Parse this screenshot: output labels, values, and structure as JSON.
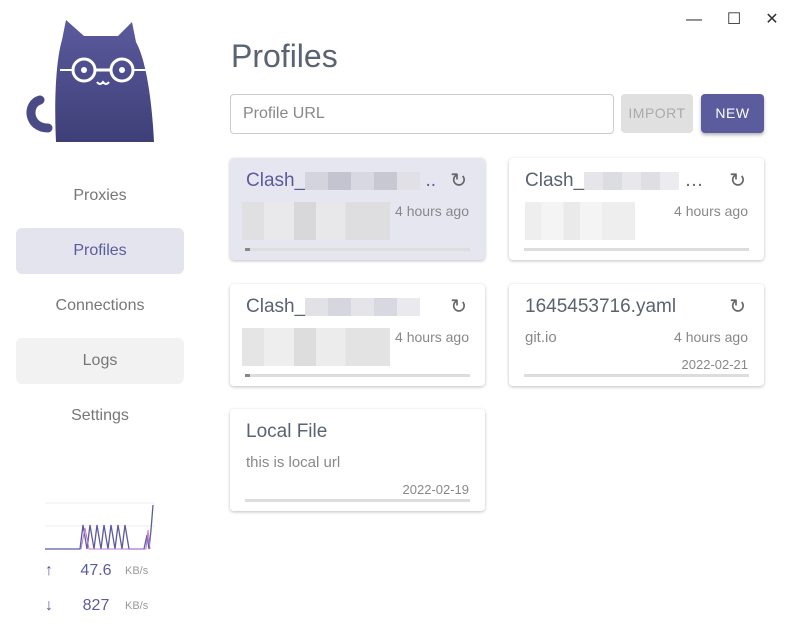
{
  "window": {
    "minimize": "—",
    "maximize": "☐",
    "close": "✕"
  },
  "sidebar": {
    "items": [
      {
        "label": "Proxies"
      },
      {
        "label": "Profiles",
        "active": true
      },
      {
        "label": "Connections"
      },
      {
        "label": "Logs"
      },
      {
        "label": "Settings"
      }
    ],
    "traffic": {
      "up_value": "47.6",
      "up_unit": "KB/s",
      "down_value": "827",
      "down_unit": "KB/s"
    }
  },
  "main": {
    "title": "Profiles",
    "url_placeholder": "Profile URL",
    "import_label": "IMPORT",
    "new_label": "NEW",
    "profiles": [
      {
        "name": "Clash_",
        "ellipsis": "..",
        "time": "4 hours ago",
        "selected": true
      },
      {
        "name": "Clash_",
        "ellipsis": "…",
        "time": "4 hours ago"
      },
      {
        "name": "Clash_",
        "time": "4 hours ago"
      },
      {
        "name": "1645453716.yaml",
        "desc": "git.io",
        "time": "4 hours ago",
        "date": "2022-02-21"
      },
      {
        "name": "Local File",
        "desc": "this is local url",
        "date": "2022-02-19"
      }
    ]
  },
  "colors": {
    "accent": "#5b5c9d",
    "selected_bg": "#e6e6f0"
  }
}
